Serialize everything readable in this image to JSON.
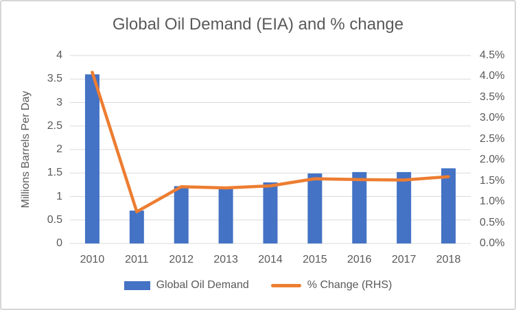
{
  "chart_data": {
    "type": "bar+line combo",
    "title": "Global Oil Demand (EIA) and % change",
    "categories": [
      "2010",
      "2011",
      "2012",
      "2013",
      "2014",
      "2015",
      "2016",
      "2017",
      "2018"
    ],
    "series": [
      {
        "name": "Global Oil Demand",
        "type": "bar",
        "axis": "left",
        "color": "#4472C4",
        "values": [
          3.6,
          0.7,
          1.22,
          1.16,
          1.3,
          1.49,
          1.52,
          1.52,
          1.6
        ]
      },
      {
        "name": "% Change (RHS)",
        "type": "line",
        "axis": "right",
        "color": "#ED7D31",
        "values": [
          4.1,
          0.76,
          1.36,
          1.33,
          1.38,
          1.55,
          1.53,
          1.52,
          1.6
        ]
      }
    ],
    "left_axis": {
      "title": "Millions Barrels Per Day",
      "min": 0,
      "max": 4,
      "tick_labels": [
        "4",
        "3.5",
        "3",
        "2.5",
        "2",
        "1.5",
        "1",
        "0.5",
        "0"
      ]
    },
    "right_axis": {
      "title": "",
      "min": 0,
      "max": 4.5,
      "tick_labels": [
        "4.5%",
        "4.0%",
        "3.5%",
        "3.0%",
        "2.5%",
        "2.0%",
        "1.5%",
        "1.0%",
        "0.5%",
        "0.0%"
      ]
    },
    "grid": true,
    "legend_position": "bottom",
    "colors": {
      "gridline": "#D9D9D9",
      "axis_text": "#595959",
      "title_text": "#595959",
      "border": "#D6D6D6",
      "background": "#FFFFFF"
    }
  }
}
